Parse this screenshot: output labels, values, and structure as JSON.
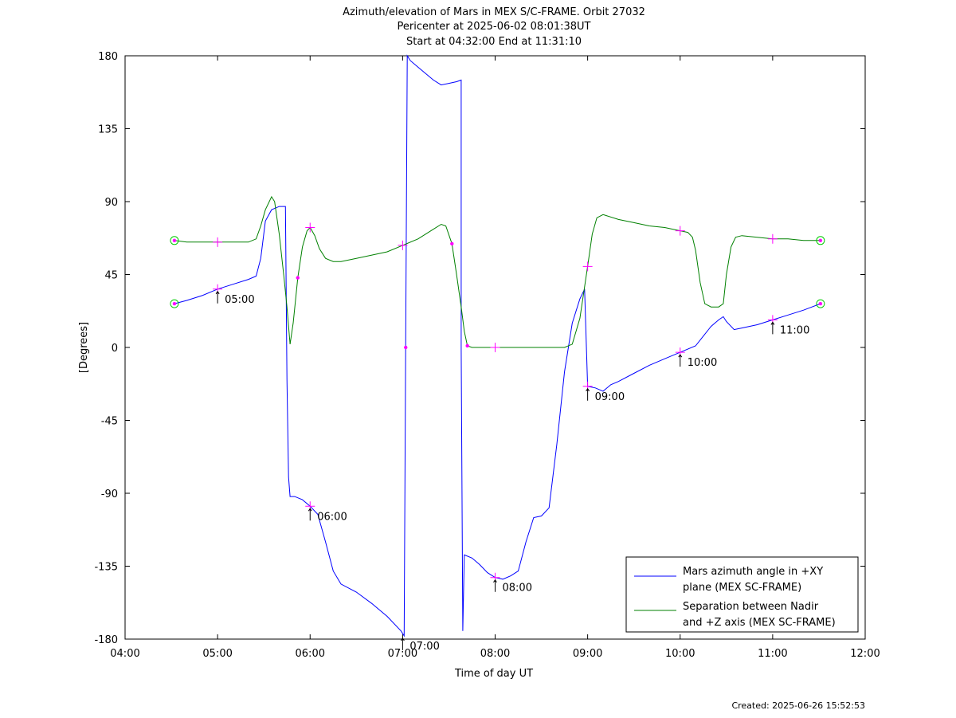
{
  "chart_data": {
    "type": "line",
    "title": [
      "Azimuth/elevation of Mars in MEX S/C-FRAME.  Orbit 27032",
      "Pericenter at 2025-06-02 08:01:38UT",
      "Start at 04:32:00 End at 11:31:10"
    ],
    "xlabel": "Time of day UT",
    "ylabel": "[Degrees]",
    "xlim": [
      "04:00",
      "12:00"
    ],
    "ylim": [
      -180,
      180
    ],
    "x_ticks": [
      "04:00",
      "05:00",
      "06:00",
      "07:00",
      "08:00",
      "09:00",
      "10:00",
      "11:00",
      "12:00"
    ],
    "y_ticks": [
      180,
      135,
      90,
      45,
      0,
      -45,
      -90,
      -135,
      -180
    ],
    "grid": false,
    "legend_position": "bottom-right",
    "footer": "Created: 2025-06-26 15:52:53",
    "colors": {
      "azimuth": "#0000ff",
      "separation": "#008000",
      "markers": "#ff00ff",
      "endpoints": "#00cc00"
    },
    "series": [
      {
        "name": "Mars azimuth angle in +XY plane (MEX SC-FRAME)",
        "legend_lines": [
          "Mars azimuth angle in +XY",
          "plane (MEX SC-FRAME)"
        ],
        "color": "#0000ff",
        "points": [
          [
            "04:32",
            27
          ],
          [
            "04:40",
            29
          ],
          [
            "04:50",
            32
          ],
          [
            "05:00",
            36
          ],
          [
            "05:10",
            39
          ],
          [
            "05:20",
            42
          ],
          [
            "05:25",
            44
          ],
          [
            "05:28",
            55
          ],
          [
            "05:31",
            78
          ],
          [
            "05:35",
            85
          ],
          [
            "05:40",
            87
          ],
          [
            "05:44",
            87
          ],
          [
            "05:45",
            -20
          ],
          [
            "05:46",
            -80
          ],
          [
            "05:47",
            -92
          ],
          [
            "05:50",
            -92
          ],
          [
            "05:55",
            -94
          ],
          [
            "06:00",
            -98
          ],
          [
            "06:05",
            -103
          ],
          [
            "06:10",
            -120
          ],
          [
            "06:15",
            -138
          ],
          [
            "06:20",
            -146
          ],
          [
            "06:30",
            -151
          ],
          [
            "06:40",
            -158
          ],
          [
            "06:50",
            -166
          ],
          [
            "06:59",
            -175
          ],
          [
            "07:01",
            -178
          ],
          [
            "07:02",
            0
          ],
          [
            "07:03",
            180
          ],
          [
            "07:05",
            177
          ],
          [
            "07:10",
            173
          ],
          [
            "07:15",
            169
          ],
          [
            "07:20",
            165
          ],
          [
            "07:25",
            162
          ],
          [
            "07:30",
            163
          ],
          [
            "07:35",
            164
          ],
          [
            "07:38",
            165
          ],
          [
            "07:38",
            0
          ],
          [
            "07:39",
            -175
          ],
          [
            "07:40",
            -128
          ],
          [
            "07:45",
            -130
          ],
          [
            "07:50",
            -134
          ],
          [
            "07:55",
            -139
          ],
          [
            "08:00",
            -142
          ],
          [
            "08:05",
            -143
          ],
          [
            "08:10",
            -141
          ],
          [
            "08:15",
            -138
          ],
          [
            "08:20",
            -120
          ],
          [
            "08:25",
            -105
          ],
          [
            "08:30",
            -104
          ],
          [
            "08:35",
            -99
          ],
          [
            "08:40",
            -60
          ],
          [
            "08:45",
            -15
          ],
          [
            "08:50",
            15
          ],
          [
            "08:55",
            30
          ],
          [
            "08:58",
            36
          ],
          [
            "09:00",
            -24
          ],
          [
            "09:05",
            -25
          ],
          [
            "09:10",
            -27
          ],
          [
            "09:15",
            -23
          ],
          [
            "09:20",
            -21
          ],
          [
            "09:30",
            -16
          ],
          [
            "09:40",
            -11
          ],
          [
            "09:50",
            -7
          ],
          [
            "10:00",
            -3
          ],
          [
            "10:10",
            1
          ],
          [
            "10:15",
            7
          ],
          [
            "10:20",
            13
          ],
          [
            "10:25",
            17
          ],
          [
            "10:28",
            19
          ],
          [
            "10:30",
            16
          ],
          [
            "10:35",
            11
          ],
          [
            "10:40",
            12
          ],
          [
            "10:50",
            14
          ],
          [
            "11:00",
            17
          ],
          [
            "11:10",
            20
          ],
          [
            "11:20",
            23
          ],
          [
            "11:31",
            27
          ]
        ]
      },
      {
        "name": "Separation between Nadir and +Z axis (MEX SC-FRAME)",
        "legend_lines": [
          "Separation between Nadir",
          "and +Z axis (MEX SC-FRAME)"
        ],
        "color": "#008000",
        "points": [
          [
            "04:32",
            66
          ],
          [
            "04:40",
            65
          ],
          [
            "04:50",
            65
          ],
          [
            "05:00",
            65
          ],
          [
            "05:10",
            65
          ],
          [
            "05:20",
            65
          ],
          [
            "05:25",
            67
          ],
          [
            "05:28",
            75
          ],
          [
            "05:31",
            85
          ],
          [
            "05:35",
            93
          ],
          [
            "05:37",
            90
          ],
          [
            "05:40",
            70
          ],
          [
            "05:43",
            44
          ],
          [
            "05:45",
            25
          ],
          [
            "05:47",
            2
          ],
          [
            "05:49",
            15
          ],
          [
            "05:52",
            43
          ],
          [
            "05:55",
            62
          ],
          [
            "05:58",
            72
          ],
          [
            "06:00",
            74
          ],
          [
            "06:03",
            69
          ],
          [
            "06:06",
            61
          ],
          [
            "06:10",
            55
          ],
          [
            "06:15",
            53
          ],
          [
            "06:20",
            53
          ],
          [
            "06:30",
            55
          ],
          [
            "06:40",
            57
          ],
          [
            "06:50",
            59
          ],
          [
            "07:00",
            63
          ],
          [
            "07:10",
            67
          ],
          [
            "07:15",
            70
          ],
          [
            "07:20",
            73
          ],
          [
            "07:25",
            76
          ],
          [
            "07:28",
            75
          ],
          [
            "07:32",
            64
          ],
          [
            "07:35",
            45
          ],
          [
            "07:38",
            25
          ],
          [
            "07:40",
            10
          ],
          [
            "07:42",
            1
          ],
          [
            "07:45",
            0
          ],
          [
            "08:00",
            0
          ],
          [
            "08:10",
            0
          ],
          [
            "08:20",
            0
          ],
          [
            "08:30",
            0
          ],
          [
            "08:40",
            0
          ],
          [
            "08:45",
            0
          ],
          [
            "08:50",
            2
          ],
          [
            "08:55",
            18
          ],
          [
            "09:00",
            50
          ],
          [
            "09:03",
            70
          ],
          [
            "09:06",
            80
          ],
          [
            "09:10",
            82
          ],
          [
            "09:20",
            79
          ],
          [
            "09:30",
            77
          ],
          [
            "09:40",
            75
          ],
          [
            "09:50",
            74
          ],
          [
            "10:00",
            72
          ],
          [
            "10:05",
            71
          ],
          [
            "10:08",
            68
          ],
          [
            "10:10",
            60
          ],
          [
            "10:13",
            40
          ],
          [
            "10:16",
            27
          ],
          [
            "10:20",
            25
          ],
          [
            "10:25",
            25
          ],
          [
            "10:28",
            27
          ],
          [
            "10:30",
            45
          ],
          [
            "10:33",
            62
          ],
          [
            "10:36",
            68
          ],
          [
            "10:40",
            69
          ],
          [
            "10:50",
            68
          ],
          [
            "11:00",
            67
          ],
          [
            "11:10",
            67
          ],
          [
            "11:20",
            66
          ],
          [
            "11:31",
            66
          ]
        ]
      }
    ],
    "time_annotations": [
      {
        "label": "05:00",
        "time": "05:00",
        "value": 36
      },
      {
        "label": "06:00",
        "time": "06:00",
        "value": -98
      },
      {
        "label": "07:00",
        "time": "07:00",
        "value": -178
      },
      {
        "label": "08:00",
        "time": "08:00",
        "value": -142
      },
      {
        "label": "09:00",
        "time": "09:00",
        "value": -24
      },
      {
        "label": "10:00",
        "time": "10:00",
        "value": -3
      },
      {
        "label": "11:00",
        "time": "11:00",
        "value": 17
      }
    ]
  }
}
